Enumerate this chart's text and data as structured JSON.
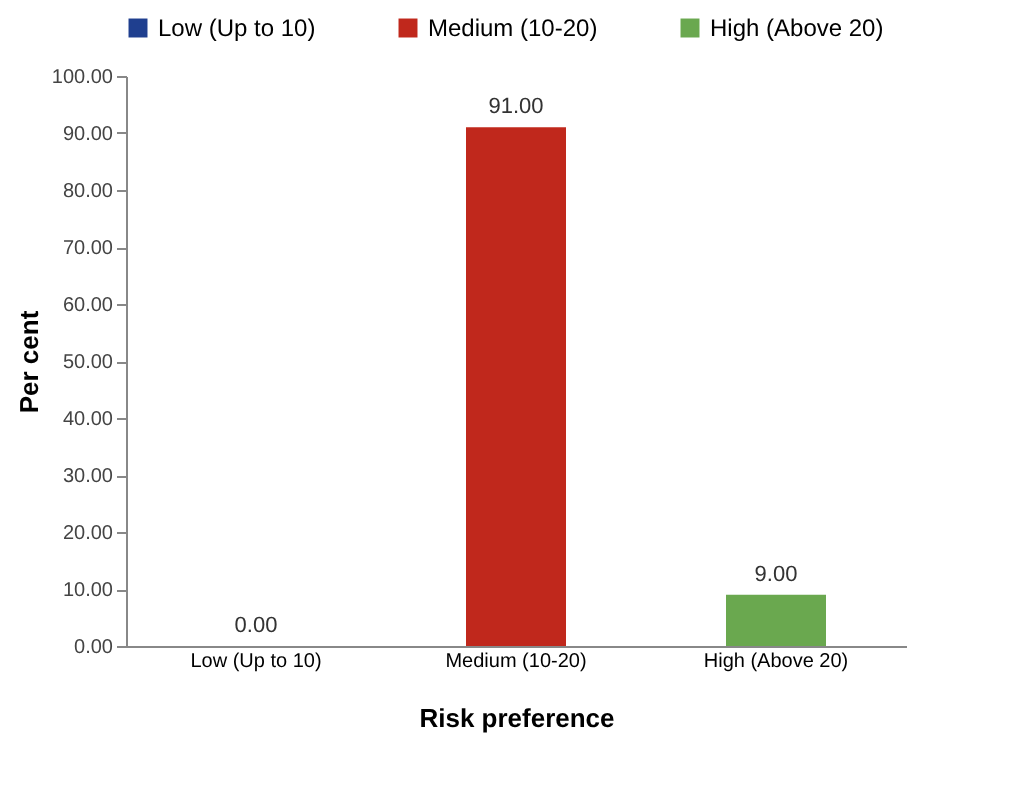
{
  "chart_data": {
    "type": "bar",
    "xlabel": "Risk preference",
    "ylabel": "Per cent",
    "categories": [
      "Low (Up to 10)",
      "Medium (10-20)",
      "High (Above 20)"
    ],
    "series": [
      {
        "name": "Low (Up to 10)",
        "color": "#1f3f8f",
        "values": [
          0,
          null,
          null
        ],
        "value_labels": [
          "0.00",
          null,
          null
        ]
      },
      {
        "name": "Medium (10-20)",
        "color": "#c0281c",
        "values": [
          null,
          91,
          null
        ],
        "value_labels": [
          null,
          "91.00",
          null
        ]
      },
      {
        "name": "High (Above 20)",
        "color": "#6aa84f",
        "values": [
          null,
          null,
          9
        ],
        "value_labels": [
          null,
          null,
          "9.00"
        ]
      }
    ],
    "ylim": [
      0,
      100
    ],
    "yticks": [
      {
        "value": 0,
        "label": "0.00"
      },
      {
        "value": 10,
        "label": "10.00"
      },
      {
        "value": 20,
        "label": "20.00"
      },
      {
        "value": 30,
        "label": "30.00"
      },
      {
        "value": 40,
        "label": "40.00"
      },
      {
        "value": 50,
        "label": "50.00"
      },
      {
        "value": 60,
        "label": "60.00"
      },
      {
        "value": 70,
        "label": "70.00"
      },
      {
        "value": 80,
        "label": "80.00"
      },
      {
        "value": 90,
        "label": "90.00"
      },
      {
        "value": 100,
        "label": "100.00"
      }
    ],
    "legend": "top"
  }
}
